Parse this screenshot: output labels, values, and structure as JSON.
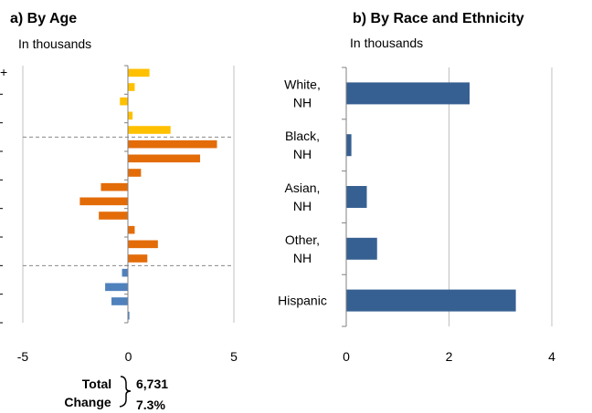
{
  "chart_data": [
    {
      "type": "bar",
      "orientation": "horizontal",
      "title": "a) By Age",
      "subtitle": "In thousands",
      "xlim": [
        -5,
        5
      ],
      "xticks": [
        -5,
        0,
        5
      ],
      "grid": "vertical",
      "truncated_top_tick_label": "+",
      "bars_top_to_bottom": [
        {
          "value": 1.0,
          "color": "#ffc000"
        },
        {
          "value": 0.3,
          "color": "#ffc000"
        },
        {
          "value": -0.4,
          "color": "#ffc000"
        },
        {
          "value": 0.2,
          "color": "#ffc000"
        },
        {
          "value": 2.0,
          "color": "#ffc000"
        },
        {
          "value": 4.2,
          "color": "#e36c09"
        },
        {
          "value": 3.4,
          "color": "#e36c09"
        },
        {
          "value": 0.6,
          "color": "#e36c09"
        },
        {
          "value": -1.3,
          "color": "#e36c09"
        },
        {
          "value": -2.3,
          "color": "#e36c09"
        },
        {
          "value": -1.4,
          "color": "#e36c09"
        },
        {
          "value": 0.3,
          "color": "#e36c09"
        },
        {
          "value": 1.4,
          "color": "#e36c09"
        },
        {
          "value": 0.9,
          "color": "#e36c09"
        },
        {
          "value": -0.3,
          "color": "#4f81bd"
        },
        {
          "value": -1.1,
          "color": "#4f81bd"
        },
        {
          "value": -0.8,
          "color": "#4f81bd"
        },
        {
          "value": 0.05,
          "color": "#4f81bd"
        }
      ],
      "dashed_separators_after_bar_index": [
        4,
        13
      ]
    },
    {
      "type": "bar",
      "orientation": "horizontal",
      "title": "b) By Race and Ethnicity",
      "subtitle": "In thousands",
      "categories": [
        "White,\nNH",
        "Black,\nNH",
        "Asian,\nNH",
        "Other,\nNH",
        "Hispanic"
      ],
      "values": [
        2.4,
        0.1,
        0.4,
        0.6,
        3.3
      ],
      "xlim": [
        0,
        4
      ],
      "xticks": [
        0,
        2,
        4
      ],
      "grid": "vertical",
      "bar_color": "#376092"
    }
  ],
  "total": {
    "label_line1": "Total",
    "label_line2": "Change",
    "value": "6,731",
    "percent": "7.3%"
  }
}
